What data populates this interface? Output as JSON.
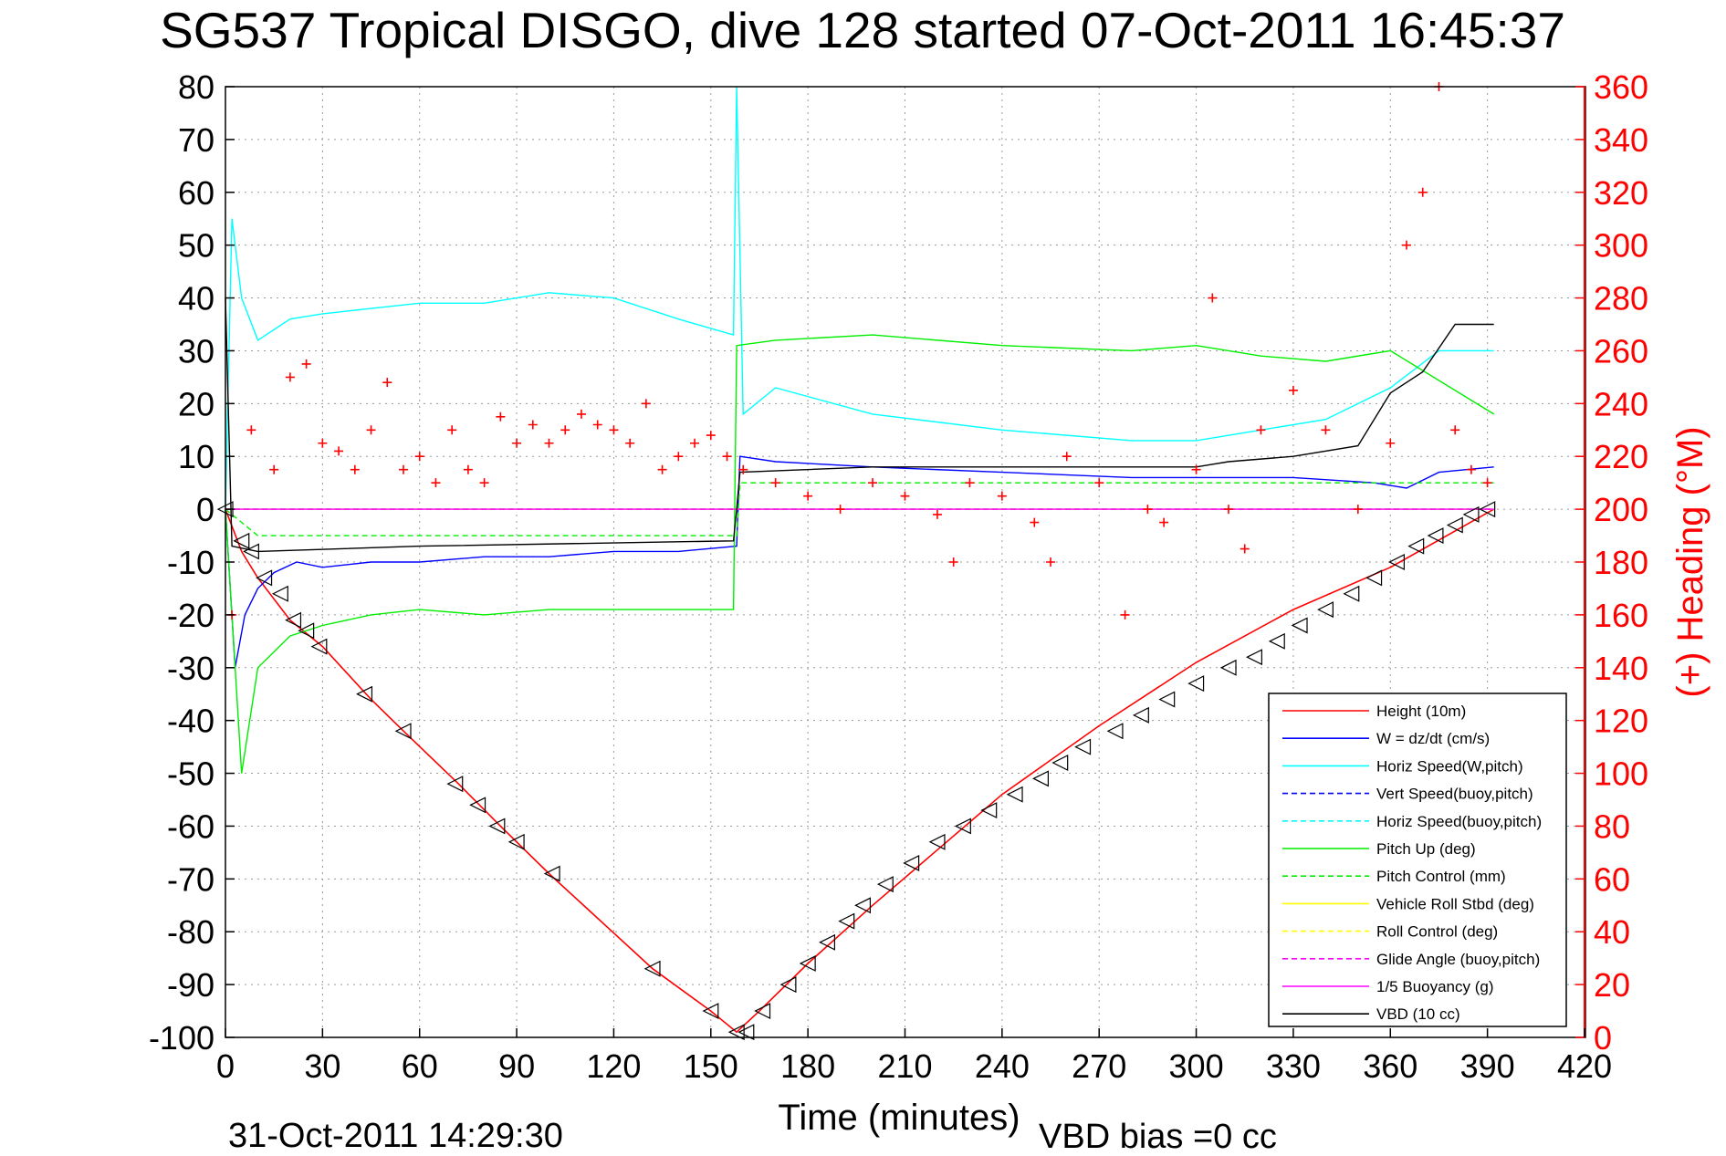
{
  "chart_data": {
    "type": "line",
    "title": "SG537 Tropical DISGO, dive 128 started 07-Oct-2011 16:45:37",
    "xlabel": "Time (minutes)",
    "ylabel_right": "(+) Heading (°M)",
    "footer_date": "31-Oct-2011 14:29:30",
    "footer_note": "VBD bias =0 cc",
    "xlim": [
      0,
      420
    ],
    "ylim": [
      -100,
      80
    ],
    "ylim_right": [
      0,
      360
    ],
    "x_ticks": [
      0,
      30,
      60,
      90,
      120,
      150,
      180,
      210,
      240,
      270,
      300,
      330,
      360,
      390,
      420
    ],
    "y_ticks": [
      80,
      70,
      60,
      50,
      40,
      30,
      20,
      10,
      0,
      -10,
      -20,
      -30,
      -40,
      -50,
      -60,
      -70,
      -80,
      -90,
      -100
    ],
    "y_ticks_right": [
      360,
      340,
      320,
      300,
      280,
      260,
      240,
      220,
      200,
      180,
      160,
      140,
      120,
      100,
      80,
      60,
      40,
      20,
      0
    ],
    "grid": true,
    "legend_position": "bottom-right",
    "colors": {
      "height": "#ff0000",
      "w": "#0000ff",
      "horiz_speed": "#00ffff",
      "pitch": "#00ee00",
      "roll": "#ffff00",
      "glide": "#ff00ff",
      "vbd": "#000000",
      "heading": "#ff0000"
    },
    "series": [
      {
        "key": "height",
        "name": "Height (10m)",
        "color": "#ff0000",
        "dash": "",
        "x": [
          0,
          5,
          10,
          20,
          30,
          45,
          55,
          72,
          85,
          100,
          132,
          150,
          158,
          165,
          180,
          200,
          240,
          270,
          300,
          330,
          360,
          392
        ],
        "y": [
          0,
          -8,
          -13,
          -21,
          -26,
          -36,
          -42,
          -52,
          -60,
          -69,
          -87,
          -95,
          -99,
          -95,
          -86,
          -75,
          -54,
          -41,
          -29,
          -19,
          -11,
          0
        ]
      },
      {
        "key": "w",
        "name": "W = dz/dt (cm/s)",
        "color": "#0000ff",
        "dash": "",
        "x": [
          0,
          3,
          6,
          10,
          15,
          22,
          30,
          45,
          60,
          80,
          100,
          120,
          140,
          158,
          159,
          170,
          200,
          240,
          280,
          310,
          330,
          355,
          365,
          375,
          392
        ],
        "y": [
          0,
          -30,
          -20,
          -15,
          -12,
          -10,
          -11,
          -10,
          -10,
          -9,
          -9,
          -8,
          -8,
          -7,
          10,
          9,
          8,
          7,
          6,
          6,
          6,
          5,
          4,
          7,
          8
        ]
      },
      {
        "key": "horiz_speed",
        "name": "Horiz Speed(W,pitch)",
        "color": "#00ffff",
        "dash": "",
        "x": [
          0,
          2,
          5,
          10,
          20,
          30,
          45,
          60,
          80,
          100,
          120,
          140,
          157,
          158,
          160,
          170,
          200,
          240,
          280,
          300,
          320,
          340,
          360,
          375,
          392
        ],
        "y": [
          0,
          55,
          40,
          32,
          36,
          37,
          38,
          39,
          39,
          41,
          40,
          36,
          33,
          80,
          18,
          23,
          18,
          15,
          13,
          13,
          15,
          17,
          23,
          30,
          30
        ]
      },
      {
        "key": "vert_speed_buoy",
        "name": "Vert Speed(buoy,pitch)",
        "color": "#0000ff",
        "dash": "6,4",
        "x": [
          0,
          392
        ],
        "y": [
          0,
          0
        ]
      },
      {
        "key": "horiz_speed_buoy",
        "name": "Horiz Speed(buoy,pitch)",
        "color": "#00ffff",
        "dash": "6,4",
        "x": [
          0,
          392
        ],
        "y": [
          0,
          0
        ]
      },
      {
        "key": "pitch",
        "name": "Pitch Up (deg)",
        "color": "#00ee00",
        "dash": "",
        "x": [
          0,
          5,
          10,
          20,
          30,
          45,
          60,
          80,
          100,
          120,
          140,
          157,
          158,
          170,
          200,
          240,
          280,
          300,
          320,
          340,
          360,
          392
        ],
        "y": [
          0,
          -50,
          -30,
          -24,
          -22,
          -20,
          -19,
          -20,
          -19,
          -19,
          -19,
          -19,
          31,
          32,
          33,
          31,
          30,
          31,
          29,
          28,
          30,
          18
        ]
      },
      {
        "key": "pitch_control",
        "name": "Pitch Control (mm)",
        "color": "#00ee00",
        "dash": "6,4",
        "x": [
          0,
          10,
          158,
          159,
          392
        ],
        "y": [
          0,
          -5,
          -5,
          5,
          5
        ]
      },
      {
        "key": "roll",
        "name": "Vehicle Roll Stbd (deg)",
        "color": "#ffff00",
        "dash": "",
        "x": [
          0,
          20,
          40,
          60,
          80,
          100,
          120,
          140,
          158,
          180,
          200,
          240,
          280,
          300,
          330,
          360,
          392
        ],
        "y": [
          0,
          0,
          0,
          0,
          0,
          0,
          0,
          0,
          0,
          0,
          0,
          0,
          0,
          0,
          0,
          0,
          0
        ]
      },
      {
        "key": "roll_control",
        "name": "Roll Control (deg)",
        "color": "#ffff00",
        "dash": "6,4",
        "x": [
          0,
          392
        ],
        "y": [
          0,
          0
        ]
      },
      {
        "key": "glide_angle",
        "name": "Glide Angle (buoy,pitch)",
        "color": "#ff00ff",
        "dash": "6,4",
        "x": [
          0,
          392
        ],
        "y": [
          0,
          0
        ]
      },
      {
        "key": "buoyancy",
        "name": "1/5 Buoyancy (g)",
        "color": "#ff00ff",
        "dash": "",
        "x": [
          0,
          392
        ],
        "y": [
          0,
          0
        ]
      },
      {
        "key": "vbd",
        "name": "VBD (10 cc)",
        "color": "#000000",
        "dash": "",
        "x": [
          0,
          2,
          10,
          60,
          157,
          158,
          159,
          200,
          300,
          310,
          330,
          350,
          360,
          370,
          380,
          392
        ],
        "y": [
          40,
          -7,
          -8,
          -7,
          -6,
          0,
          7,
          8,
          8,
          9,
          10,
          12,
          22,
          26,
          35,
          35
        ]
      }
    ],
    "heading_series": {
      "name": "(+) Heading",
      "axis": "right",
      "color": "#ff0000",
      "marker": "+",
      "x": [
        2,
        8,
        15,
        20,
        25,
        30,
        35,
        40,
        45,
        50,
        55,
        60,
        65,
        70,
        75,
        80,
        85,
        90,
        95,
        100,
        105,
        110,
        115,
        120,
        125,
        130,
        135,
        140,
        145,
        150,
        155,
        160,
        170,
        180,
        190,
        200,
        210,
        220,
        225,
        230,
        240,
        250,
        255,
        260,
        270,
        278,
        285,
        290,
        300,
        305,
        310,
        315,
        320,
        330,
        340,
        350,
        360,
        365,
        370,
        375,
        380,
        385,
        390
      ],
      "y": [
        160,
        230,
        215,
        250,
        255,
        225,
        222,
        215,
        230,
        248,
        215,
        220,
        210,
        230,
        215,
        210,
        235,
        225,
        232,
        225,
        230,
        236,
        232,
        230,
        225,
        240,
        215,
        220,
        225,
        228,
        220,
        215,
        210,
        205,
        200,
        210,
        205,
        198,
        180,
        210,
        205,
        195,
        180,
        220,
        210,
        160,
        200,
        195,
        215,
        280,
        200,
        185,
        230,
        245,
        230,
        200,
        225,
        300,
        320,
        360,
        230,
        215,
        210
      ]
    },
    "dive_triangles": {
      "x": [
        0,
        5,
        8,
        12,
        17,
        21,
        25,
        29,
        43,
        55,
        71,
        78,
        84,
        90,
        101,
        132,
        150,
        158,
        161,
        166,
        174,
        180,
        186,
        192,
        197,
        204,
        212,
        220,
        228,
        236,
        244,
        252,
        258,
        265,
        275,
        283,
        291,
        300,
        310,
        318,
        325,
        332,
        340,
        348,
        355,
        362,
        368,
        374,
        380,
        385,
        390
      ],
      "y": [
        0,
        -6,
        -8,
        -13,
        -16,
        -21,
        -23,
        -26,
        -35,
        -42,
        -52,
        -56,
        -60,
        -63,
        -69,
        -87,
        -95,
        -99,
        -99,
        -95,
        -90,
        -86,
        -82,
        -78,
        -75,
        -71,
        -67,
        -63,
        -60,
        -57,
        -54,
        -51,
        -48,
        -45,
        -42,
        -39,
        -36,
        -33,
        -30,
        -28,
        -25,
        -22,
        -19,
        -16,
        -13,
        -10,
        -7,
        -5,
        -3,
        -1,
        0
      ]
    }
  }
}
